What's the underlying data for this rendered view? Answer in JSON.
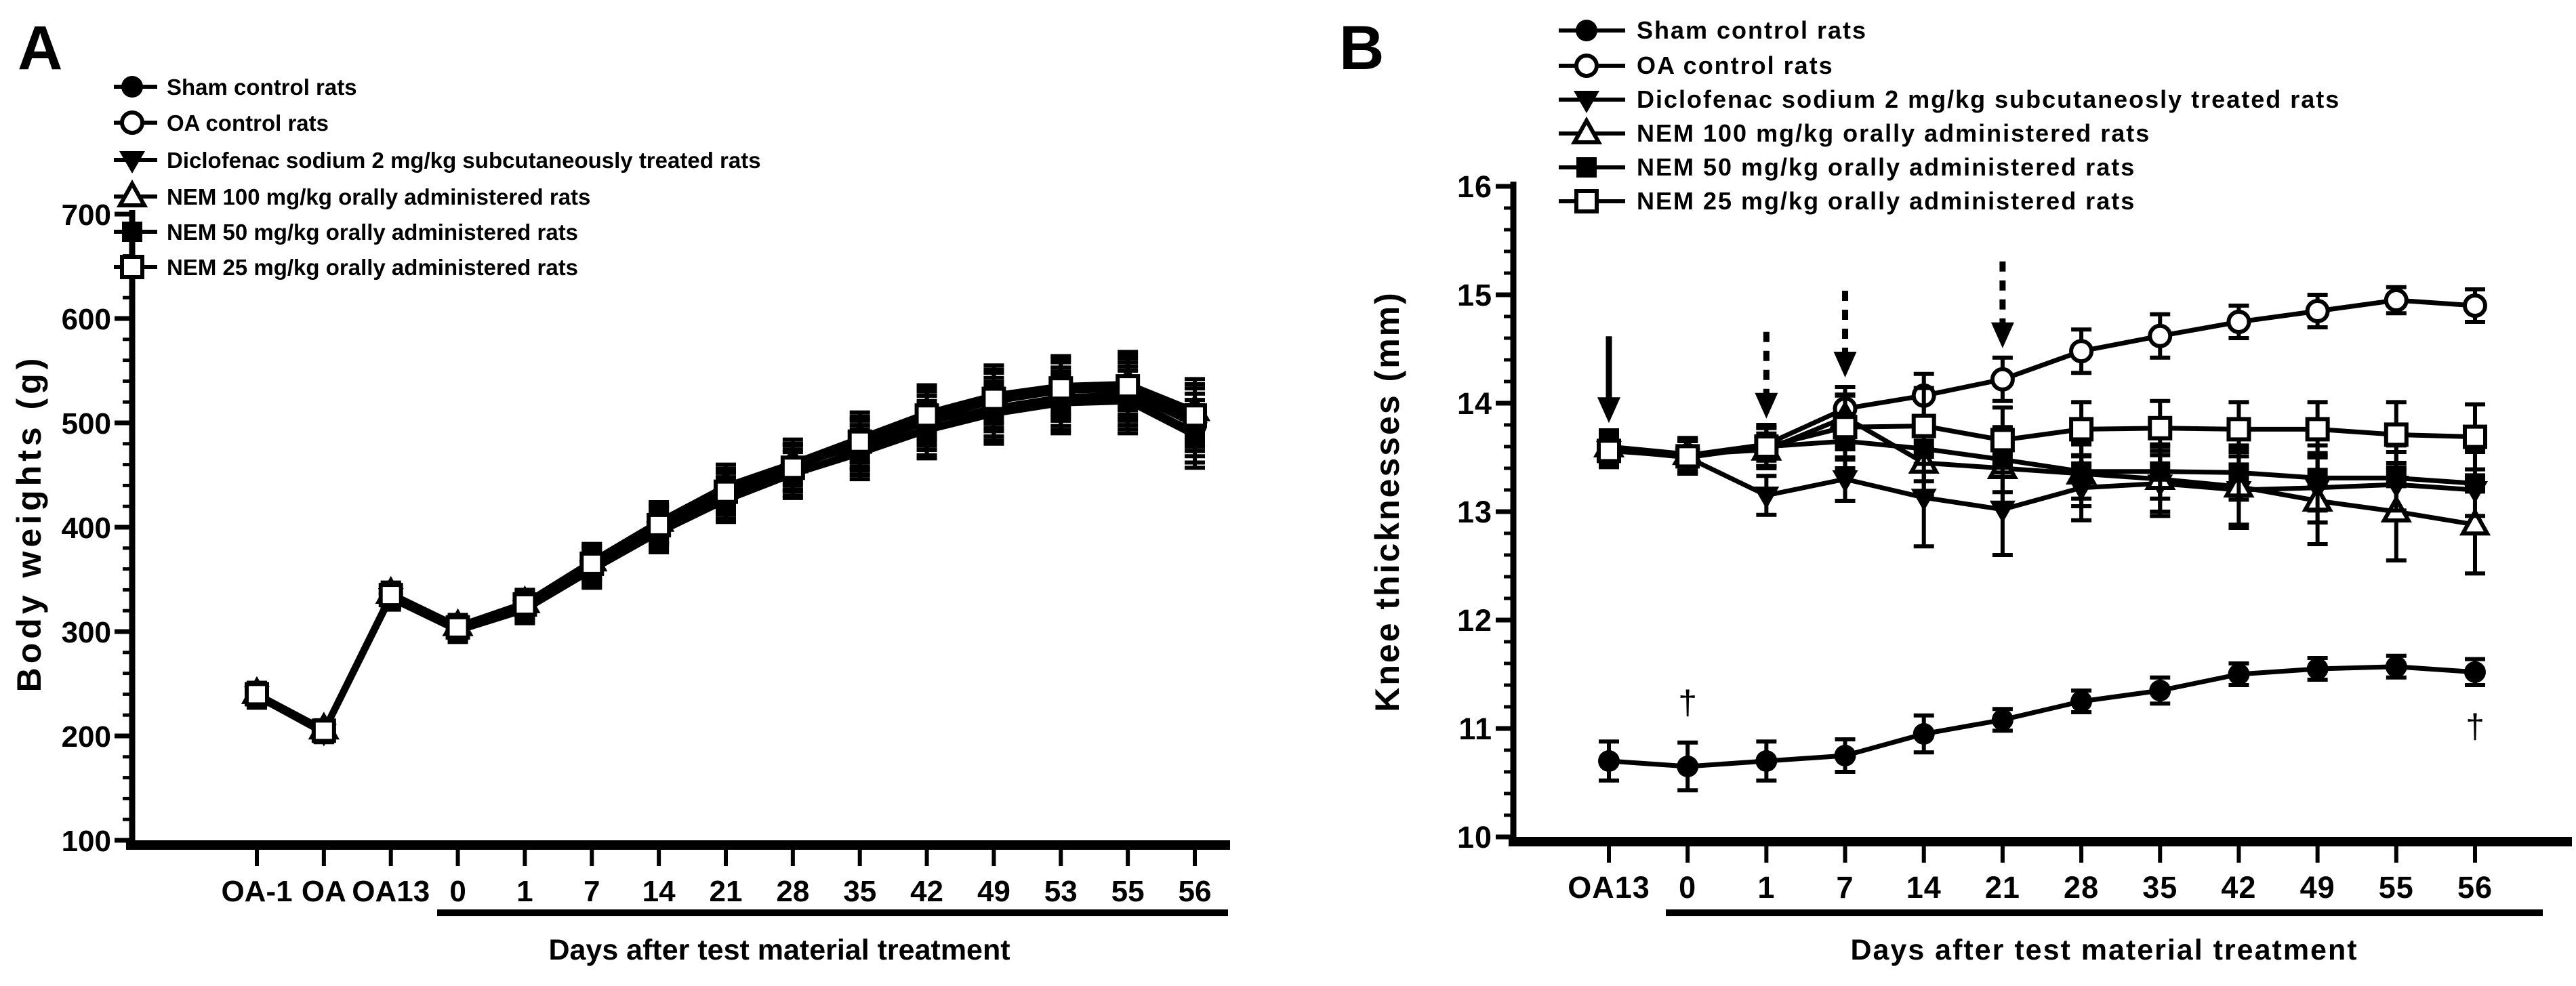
{
  "colors": {
    "ink": "#000000",
    "background": "#ffffff"
  },
  "chart_data": [
    {
      "type": "line",
      "panel_label": "A",
      "ylabel": "Body weights (g)",
      "xlabel": "Days after test material treatment",
      "categories": [
        "OA-1",
        "OA",
        "OA13",
        "0",
        "1",
        "7",
        "14",
        "21",
        "28",
        "35",
        "42",
        "49",
        "53",
        "55",
        "56"
      ],
      "treatment_bar_span": [
        "0",
        "56"
      ],
      "ylim": [
        100,
        700
      ],
      "yticks": [
        100,
        200,
        300,
        400,
        500,
        600,
        700
      ],
      "y_minor_step": 20,
      "grid": false,
      "legend_position": "top-left-inside",
      "series": [
        {
          "name": "Sham control rats",
          "marker": "filled-circle",
          "values": [
            240,
            204,
            334,
            302,
            324,
            363,
            400,
            432,
            456,
            480,
            504,
            520,
            530,
            532,
            503
          ],
          "errors": [
            10,
            8,
            10,
            10,
            12,
            16,
            18,
            20,
            22,
            24,
            26,
            28,
            28,
            30,
            30
          ]
        },
        {
          "name": "OA control rats",
          "marker": "open-circle",
          "values": [
            238,
            206,
            336,
            305,
            327,
            366,
            403,
            436,
            458,
            478,
            500,
            515,
            525,
            528,
            498
          ],
          "errors": [
            10,
            8,
            10,
            10,
            12,
            16,
            18,
            20,
            22,
            24,
            26,
            28,
            28,
            30,
            30
          ]
        },
        {
          "name": "Diclofenac sodium 2 mg/kg subcutaneously treated rats",
          "marker": "filled-triangle-down",
          "values": [
            239,
            203,
            333,
            303,
            322,
            360,
            397,
            428,
            452,
            474,
            495,
            511,
            521,
            524,
            492
          ],
          "errors": [
            10,
            8,
            10,
            10,
            12,
            16,
            18,
            20,
            22,
            24,
            26,
            28,
            28,
            30,
            30
          ]
        },
        {
          "name": "NEM 100 mg/kg orally administered rats",
          "marker": "open-triangle-up",
          "values": [
            241,
            207,
            337,
            306,
            328,
            368,
            406,
            440,
            462,
            486,
            510,
            527,
            536,
            538,
            512
          ],
          "errors": [
            10,
            8,
            10,
            10,
            12,
            16,
            18,
            20,
            22,
            24,
            26,
            28,
            28,
            30,
            30
          ]
        },
        {
          "name": "NEM 50 mg/kg orally administered rats",
          "marker": "filled-square",
          "values": [
            237,
            202,
            331,
            300,
            320,
            358,
            394,
            425,
            450,
            470,
            492,
            508,
            518,
            520,
            487
          ],
          "errors": [
            10,
            8,
            10,
            10,
            12,
            16,
            18,
            20,
            22,
            24,
            26,
            28,
            28,
            30,
            30
          ]
        },
        {
          "name": "NEM 25 mg/kg orally administered rats",
          "marker": "open-square",
          "values": [
            240,
            205,
            335,
            304,
            326,
            365,
            402,
            434,
            457,
            482,
            507,
            523,
            533,
            535,
            507
          ],
          "errors": [
            10,
            8,
            10,
            10,
            12,
            16,
            18,
            20,
            22,
            24,
            26,
            28,
            28,
            30,
            30
          ]
        }
      ],
      "annotations": {
        "arrows": [],
        "daggers": []
      }
    },
    {
      "type": "line",
      "panel_label": "B",
      "ylabel": "Knee thicknesses (mm)",
      "xlabel": "Days after test material treatment",
      "categories": [
        "OA13",
        "0",
        "1",
        "7",
        "14",
        "21",
        "28",
        "35",
        "42",
        "49",
        "55",
        "56"
      ],
      "treatment_bar_span": [
        "0",
        "56"
      ],
      "ylim": [
        10,
        16
      ],
      "yticks": [
        10,
        11,
        12,
        13,
        14,
        15,
        16
      ],
      "y_minor_step": 0.2,
      "grid": false,
      "legend_position": "top-left-inside",
      "series": [
        {
          "name": "Sham control rats",
          "marker": "filled-circle",
          "values": [
            10.7,
            10.65,
            10.7,
            10.75,
            10.95,
            11.08,
            11.25,
            11.35,
            11.5,
            11.55,
            11.57,
            11.52
          ],
          "errors": [
            0.18,
            0.22,
            0.18,
            0.15,
            0.17,
            0.1,
            0.1,
            0.12,
            0.1,
            0.1,
            0.1,
            0.12
          ]
        },
        {
          "name": "OA control rats",
          "marker": "open-circle",
          "values": [
            13.58,
            13.52,
            13.62,
            13.95,
            14.07,
            14.22,
            14.48,
            14.62,
            14.75,
            14.85,
            14.95,
            14.9
          ],
          "errors": [
            0.15,
            0.15,
            0.15,
            0.2,
            0.2,
            0.2,
            0.2,
            0.2,
            0.15,
            0.15,
            0.12,
            0.15
          ]
        },
        {
          "name": "Diclofenac sodium 2 mg/kg subcutaneosly treated rats",
          "marker": "filled-triangle-down",
          "values": [
            13.57,
            13.5,
            13.15,
            13.3,
            13.13,
            13.02,
            13.22,
            13.26,
            13.2,
            13.22,
            13.25,
            13.2
          ],
          "errors": [
            0.15,
            0.15,
            0.18,
            0.2,
            0.45,
            0.42,
            0.3,
            0.3,
            0.35,
            0.32,
            0.3,
            0.35
          ]
        },
        {
          "name": "NEM 100 mg/kg orally administered rats",
          "marker": "open-triangle-up",
          "values": [
            13.6,
            13.53,
            13.57,
            13.87,
            13.45,
            13.4,
            13.35,
            13.3,
            13.23,
            13.1,
            13.0,
            12.88
          ],
          "errors": [
            0.15,
            0.15,
            0.15,
            0.2,
            0.3,
            0.35,
            0.3,
            0.3,
            0.35,
            0.4,
            0.45,
            0.45
          ]
        },
        {
          "name": "NEM 50 mg/kg orally administered rats",
          "marker": "filled-square",
          "values": [
            13.6,
            13.5,
            13.6,
            13.65,
            13.58,
            13.48,
            13.37,
            13.37,
            13.36,
            13.31,
            13.31,
            13.26
          ],
          "errors": [
            0.15,
            0.15,
            0.18,
            0.25,
            0.3,
            0.3,
            0.25,
            0.25,
            0.25,
            0.3,
            0.3,
            0.3
          ]
        },
        {
          "name": "NEM 25 mg/kg orally administered rats",
          "marker": "open-square",
          "values": [
            13.56,
            13.51,
            13.6,
            13.78,
            13.79,
            13.66,
            13.76,
            13.77,
            13.76,
            13.76,
            13.71,
            13.69
          ],
          "errors": [
            0.15,
            0.15,
            0.2,
            0.3,
            0.35,
            0.3,
            0.25,
            0.25,
            0.25,
            0.25,
            0.3,
            0.3
          ]
        }
      ],
      "annotations": {
        "arrows": [
          {
            "target_day": "OA13",
            "style": "solid"
          },
          {
            "target_day": "1",
            "style": "dashed"
          },
          {
            "target_day": "7",
            "style": "dashed"
          },
          {
            "target_day": "21",
            "style": "dashed"
          }
        ],
        "daggers": [
          {
            "day": "0",
            "position": "above",
            "symbol": "†"
          },
          {
            "day": "56",
            "position": "below",
            "symbol": "†"
          }
        ]
      }
    }
  ]
}
